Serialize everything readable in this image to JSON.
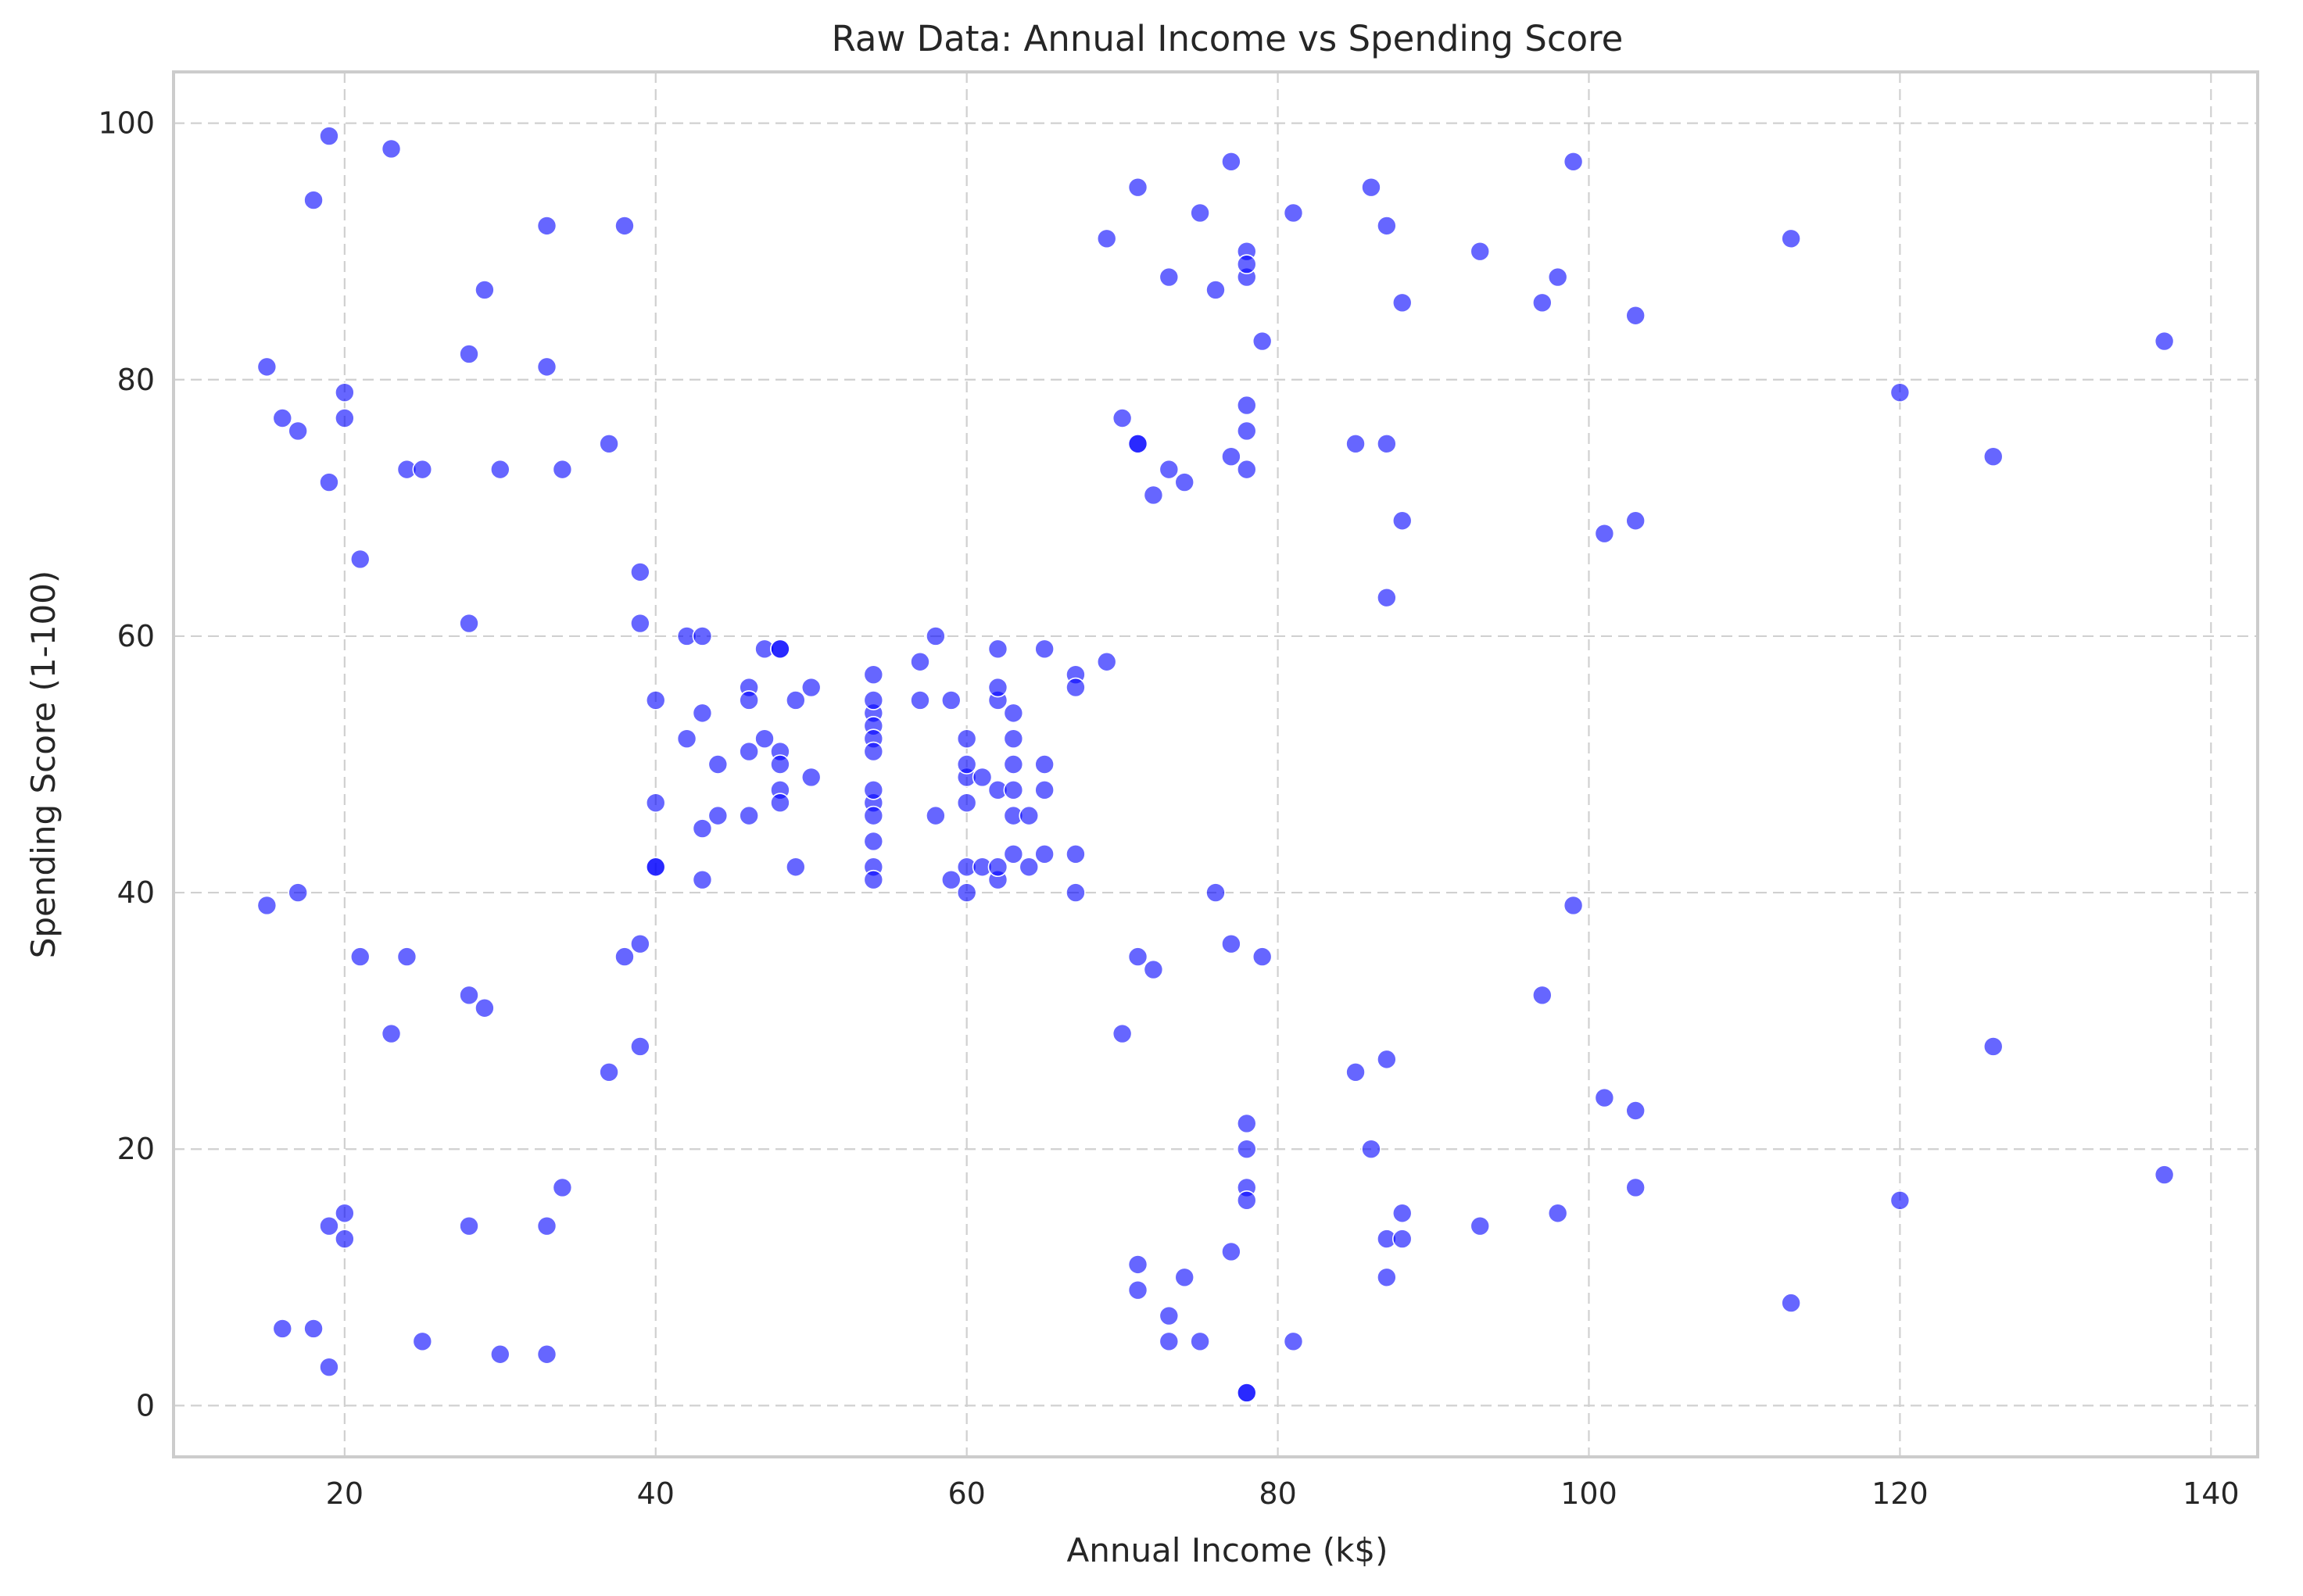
{
  "chart_data": {
    "type": "scatter",
    "title": "Raw Data: Annual Income vs Spending Score",
    "xlabel": "Annual Income (k$)",
    "ylabel": "Spending Score (1-100)",
    "xlim": [
      9,
      143
    ],
    "ylim": [
      -4,
      104
    ],
    "xticks": [
      20,
      40,
      60,
      80,
      100,
      120,
      140
    ],
    "yticks": [
      0,
      20,
      40,
      60,
      80,
      100
    ],
    "grid": true,
    "point_color": "#0000ff",
    "point_opacity": 0.6,
    "points": [
      [
        15,
        39
      ],
      [
        15,
        81
      ],
      [
        16,
        6
      ],
      [
        16,
        77
      ],
      [
        17,
        40
      ],
      [
        17,
        76
      ],
      [
        18,
        6
      ],
      [
        18,
        94
      ],
      [
        19,
        3
      ],
      [
        19,
        72
      ],
      [
        19,
        14
      ],
      [
        19,
        99
      ],
      [
        20,
        15
      ],
      [
        20,
        77
      ],
      [
        20,
        13
      ],
      [
        20,
        79
      ],
      [
        21,
        35
      ],
      [
        21,
        66
      ],
      [
        23,
        29
      ],
      [
        23,
        98
      ],
      [
        24,
        35
      ],
      [
        24,
        73
      ],
      [
        25,
        5
      ],
      [
        25,
        73
      ],
      [
        28,
        14
      ],
      [
        28,
        82
      ],
      [
        28,
        32
      ],
      [
        28,
        61
      ],
      [
        29,
        31
      ],
      [
        29,
        87
      ],
      [
        30,
        4
      ],
      [
        30,
        73
      ],
      [
        33,
        4
      ],
      [
        33,
        92
      ],
      [
        33,
        14
      ],
      [
        33,
        81
      ],
      [
        34,
        17
      ],
      [
        34,
        73
      ],
      [
        37,
        26
      ],
      [
        37,
        75
      ],
      [
        38,
        35
      ],
      [
        38,
        92
      ],
      [
        39,
        36
      ],
      [
        39,
        61
      ],
      [
        39,
        28
      ],
      [
        39,
        65
      ],
      [
        40,
        55
      ],
      [
        40,
        47
      ],
      [
        40,
        42
      ],
      [
        40,
        42
      ],
      [
        42,
        52
      ],
      [
        42,
        60
      ],
      [
        43,
        54
      ],
      [
        43,
        60
      ],
      [
        43,
        45
      ],
      [
        43,
        41
      ],
      [
        44,
        50
      ],
      [
        44,
        46
      ],
      [
        46,
        51
      ],
      [
        46,
        46
      ],
      [
        46,
        56
      ],
      [
        46,
        55
      ],
      [
        47,
        52
      ],
      [
        47,
        59
      ],
      [
        48,
        51
      ],
      [
        48,
        59
      ],
      [
        48,
        50
      ],
      [
        48,
        48
      ],
      [
        48,
        59
      ],
      [
        48,
        47
      ],
      [
        49,
        55
      ],
      [
        49,
        42
      ],
      [
        50,
        49
      ],
      [
        50,
        56
      ],
      [
        54,
        47
      ],
      [
        54,
        54
      ],
      [
        54,
        53
      ],
      [
        54,
        48
      ],
      [
        54,
        52
      ],
      [
        54,
        42
      ],
      [
        54,
        51
      ],
      [
        54,
        55
      ],
      [
        54,
        41
      ],
      [
        54,
        44
      ],
      [
        54,
        57
      ],
      [
        54,
        46
      ],
      [
        57,
        58
      ],
      [
        57,
        55
      ],
      [
        58,
        60
      ],
      [
        58,
        46
      ],
      [
        59,
        55
      ],
      [
        59,
        41
      ],
      [
        60,
        49
      ],
      [
        60,
        40
      ],
      [
        60,
        42
      ],
      [
        60,
        52
      ],
      [
        60,
        47
      ],
      [
        60,
        50
      ],
      [
        61,
        42
      ],
      [
        61,
        49
      ],
      [
        62,
        41
      ],
      [
        62,
        48
      ],
      [
        62,
        59
      ],
      [
        62,
        55
      ],
      [
        62,
        56
      ],
      [
        62,
        42
      ],
      [
        63,
        50
      ],
      [
        63,
        46
      ],
      [
        63,
        43
      ],
      [
        63,
        48
      ],
      [
        63,
        52
      ],
      [
        63,
        54
      ],
      [
        64,
        42
      ],
      [
        64,
        46
      ],
      [
        65,
        48
      ],
      [
        65,
        50
      ],
      [
        65,
        43
      ],
      [
        65,
        59
      ],
      [
        67,
        43
      ],
      [
        67,
        57
      ],
      [
        67,
        56
      ],
      [
        67,
        40
      ],
      [
        69,
        58
      ],
      [
        69,
        91
      ],
      [
        70,
        29
      ],
      [
        70,
        77
      ],
      [
        71,
        35
      ],
      [
        71,
        95
      ],
      [
        71,
        11
      ],
      [
        71,
        75
      ],
      [
        71,
        9
      ],
      [
        71,
        75
      ],
      [
        72,
        34
      ],
      [
        72,
        71
      ],
      [
        73,
        5
      ],
      [
        73,
        88
      ],
      [
        73,
        7
      ],
      [
        73,
        73
      ],
      [
        74,
        10
      ],
      [
        74,
        72
      ],
      [
        75,
        5
      ],
      [
        75,
        93
      ],
      [
        76,
        40
      ],
      [
        76,
        87
      ],
      [
        77,
        12
      ],
      [
        77,
        97
      ],
      [
        77,
        36
      ],
      [
        77,
        74
      ],
      [
        78,
        22
      ],
      [
        78,
        90
      ],
      [
        78,
        17
      ],
      [
        78,
        88
      ],
      [
        78,
        20
      ],
      [
        78,
        76
      ],
      [
        78,
        16
      ],
      [
        78,
        89
      ],
      [
        78,
        1
      ],
      [
        78,
        78
      ],
      [
        78,
        1
      ],
      [
        78,
        73
      ],
      [
        79,
        35
      ],
      [
        79,
        83
      ],
      [
        81,
        5
      ],
      [
        81,
        93
      ],
      [
        85,
        26
      ],
      [
        85,
        75
      ],
      [
        86,
        20
      ],
      [
        86,
        95
      ],
      [
        87,
        27
      ],
      [
        87,
        63
      ],
      [
        87,
        13
      ],
      [
        87,
        75
      ],
      [
        87,
        10
      ],
      [
        87,
        92
      ],
      [
        88,
        13
      ],
      [
        88,
        86
      ],
      [
        88,
        15
      ],
      [
        88,
        69
      ],
      [
        93,
        14
      ],
      [
        93,
        90
      ],
      [
        97,
        32
      ],
      [
        97,
        86
      ],
      [
        98,
        15
      ],
      [
        98,
        88
      ],
      [
        99,
        39
      ],
      [
        99,
        97
      ],
      [
        101,
        24
      ],
      [
        101,
        68
      ],
      [
        103,
        17
      ],
      [
        103,
        85
      ],
      [
        103,
        23
      ],
      [
        103,
        69
      ],
      [
        113,
        8
      ],
      [
        113,
        91
      ],
      [
        120,
        16
      ],
      [
        120,
        79
      ],
      [
        126,
        28
      ],
      [
        126,
        74
      ],
      [
        137,
        18
      ],
      [
        137,
        83
      ]
    ]
  }
}
